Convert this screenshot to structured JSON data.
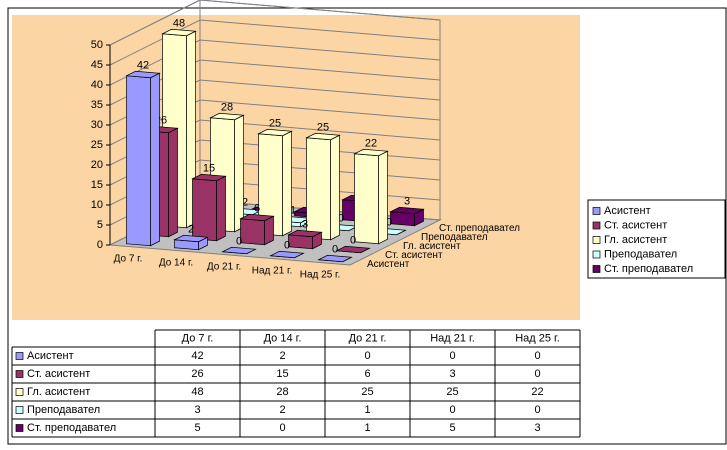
{
  "chart_data": {
    "type": "bar",
    "categories": [
      "До 7 г.",
      "До 14 г.",
      "До 21 г.",
      "Над 21 г.",
      "Над 25 г."
    ],
    "series": [
      {
        "name": "Асистент",
        "color": "#9999ff",
        "values": [
          42,
          2,
          0,
          0,
          0
        ]
      },
      {
        "name": "Ст. асистент",
        "color": "#993366",
        "values": [
          26,
          15,
          6,
          3,
          0
        ]
      },
      {
        "name": "Гл. асистент",
        "color": "#ffffcc",
        "values": [
          48,
          28,
          25,
          25,
          22
        ]
      },
      {
        "name": "Преподавател",
        "color": "#ccffff",
        "values": [
          3,
          2,
          1,
          0,
          0
        ]
      },
      {
        "name": "Ст. преподавател",
        "color": "#660066",
        "values": [
          5,
          0,
          1,
          5,
          3
        ]
      }
    ],
    "ylim": [
      0,
      50
    ],
    "yticks": [
      0,
      5,
      10,
      15,
      20,
      25,
      30,
      35,
      40,
      45,
      50
    ],
    "grid": true
  }
}
